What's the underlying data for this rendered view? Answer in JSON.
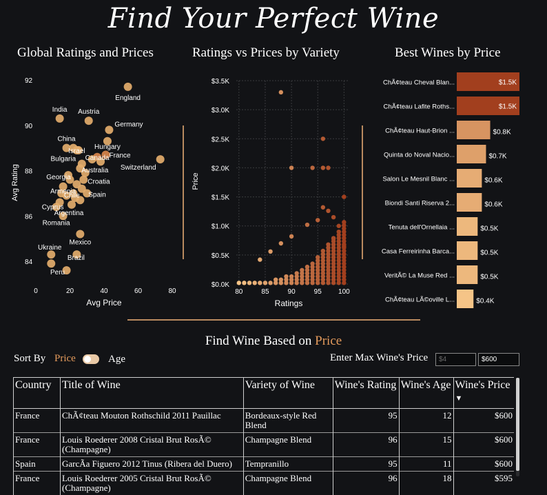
{
  "page_title": "Find Your Perfect Wine",
  "panels": {
    "global": "Global Ratings and Prices",
    "variety": "Ratings vs Prices by Variety",
    "best": "Best Wines by Price"
  },
  "colors": {
    "background": "#121316",
    "accent": "#e39a5c",
    "divider": "#b98a5f",
    "bar_dark": "#a23f1e",
    "bar_light": "#f5c487"
  },
  "chart_data": [
    {
      "type": "scatter",
      "title": "Global Ratings and Prices",
      "xlabel": "Avg Price",
      "ylabel": "Avg Rating",
      "xlim": [
        0,
        80
      ],
      "ylim": [
        83,
        92.5
      ],
      "xticks": [
        "0",
        "20",
        "40",
        "60",
        "80"
      ],
      "yticks": [
        "84",
        "86",
        "88",
        "90",
        "92"
      ],
      "grid": false,
      "points": [
        {
          "label": "England",
          "x": 54,
          "y": 91.7
        },
        {
          "label": "India",
          "x": 14,
          "y": 90.3
        },
        {
          "label": "Austria",
          "x": 31,
          "y": 90.2
        },
        {
          "label": "Germany",
          "x": 43,
          "y": 89.8
        },
        {
          "label": "Hungary",
          "x": 42,
          "y": 89.3
        },
        {
          "label": "China",
          "x": 18,
          "y": 89.0
        },
        {
          "label": "Israel",
          "x": 24,
          "y": 88.9
        },
        {
          "label": "Canada",
          "x": 36,
          "y": 88.6
        },
        {
          "label": "France",
          "x": 41,
          "y": 88.7
        },
        {
          "label": "Switzerland",
          "x": 73,
          "y": 88.5
        },
        {
          "label": "Bulgaria",
          "x": 27,
          "y": 88.3
        },
        {
          "label": "Australia",
          "x": 26,
          "y": 88.1
        },
        {
          "label": "Georgia",
          "x": 19,
          "y": 87.8
        },
        {
          "label": "Croatia",
          "x": 28,
          "y": 87.6
        },
        {
          "label": "Armenia",
          "x": 16,
          "y": 87.3
        },
        {
          "label": "Chile",
          "x": 22,
          "y": 87.0
        },
        {
          "label": "Spain",
          "x": 30,
          "y": 87.0
        },
        {
          "label": "Cyprus",
          "x": 14,
          "y": 86.6
        },
        {
          "label": "Argentina",
          "x": 21,
          "y": 86.5
        },
        {
          "label": "Romania",
          "x": 16,
          "y": 86.0
        },
        {
          "label": "Mexico",
          "x": 26,
          "y": 85.2
        },
        {
          "label": "Ukraine",
          "x": 9,
          "y": 84.3
        },
        {
          "label": "Brazil",
          "x": 24,
          "y": 84.3
        },
        {
          "label": "Peru",
          "x": 18,
          "y": 83.6
        },
        {
          "label": "",
          "x": 22,
          "y": 89.0
        },
        {
          "label": "",
          "x": 25,
          "y": 88.9
        },
        {
          "label": "",
          "x": 20,
          "y": 87.6
        },
        {
          "label": "",
          "x": 24,
          "y": 87.4
        },
        {
          "label": "",
          "x": 27,
          "y": 87.2
        },
        {
          "label": "",
          "x": 23,
          "y": 86.8
        },
        {
          "label": "",
          "x": 26,
          "y": 86.7
        },
        {
          "label": "",
          "x": 29,
          "y": 87.9
        },
        {
          "label": "",
          "x": 33,
          "y": 88.5
        },
        {
          "label": "",
          "x": 38,
          "y": 88.4
        },
        {
          "label": "",
          "x": 15,
          "y": 87.0
        },
        {
          "label": "",
          "x": 18,
          "y": 86.9
        },
        {
          "label": "",
          "x": 12,
          "y": 86.4
        },
        {
          "label": "",
          "x": 9,
          "y": 83.9
        }
      ]
    },
    {
      "type": "scatter",
      "title": "Ratings vs Prices by Variety",
      "xlabel": "Ratings",
      "ylabel": "Price",
      "xlim": [
        79.5,
        101
      ],
      "ylim": [
        0,
        3500
      ],
      "xticks": [
        "80",
        "85",
        "90",
        "95",
        "100"
      ],
      "yticks": [
        "$0.0K",
        "$0.5K",
        "$1.0K",
        "$1.5K",
        "$2.0K",
        "$2.5K",
        "$3.0K",
        "$3.5K"
      ],
      "grid": true,
      "outliers": [
        {
          "x": 88,
          "y": 3300
        },
        {
          "x": 96,
          "y": 2500
        },
        {
          "x": 90,
          "y": 2000
        },
        {
          "x": 94,
          "y": 2000
        },
        {
          "x": 96,
          "y": 2000
        },
        {
          "x": 97,
          "y": 2000
        },
        {
          "x": 100,
          "y": 1500
        },
        {
          "x": 98,
          "y": 1150
        },
        {
          "x": 93,
          "y": 1020
        },
        {
          "x": 96,
          "y": 1320
        },
        {
          "x": 97,
          "y": 1260
        },
        {
          "x": 99,
          "y": 1000
        },
        {
          "x": 95,
          "y": 1100
        },
        {
          "x": 90,
          "y": 820
        },
        {
          "x": 88,
          "y": 700
        },
        {
          "x": 86,
          "y": 560
        },
        {
          "x": 84,
          "y": 420
        },
        {
          "x": 98,
          "y": 780
        },
        {
          "x": 100,
          "y": 650
        }
      ]
    },
    {
      "type": "bar",
      "title": "Best Wines by Price",
      "orientation": "horizontal",
      "categories": [
        "ChÃ¢teau Cheval Blan...",
        "ChÃ¢teau Lafite Roths...",
        "ChÃ¢teau Haut-Brion ...",
        "Quinta do Noval Nacio...",
        "Salon Le Mesnil Blanc ...",
        "Biondi Santi Riserva 2...",
        "Tenuta dell'Ornellaia ...",
        "Casa Ferreirinha Barca...",
        "VeritÃ© La Muse Red ...",
        "ChÃ¢teau LÃ©oville L..."
      ],
      "values": [
        1500,
        1500,
        800,
        700,
        600,
        600,
        500,
        500,
        500,
        400
      ],
      "data_labels": [
        "$1.5K",
        "$1.5K",
        "$0.8K",
        "$0.7K",
        "$0.6K",
        "$0.6K",
        "$0.5K",
        "$0.5K",
        "$0.5K",
        "$0.4K"
      ],
      "xlim": [
        0,
        1500
      ]
    }
  ],
  "finder": {
    "title_prefix": "Find Wine Based on ",
    "title_accent": "Price",
    "sort_by_label": "Sort By",
    "sort_option_1": "Price",
    "sort_option_2": "Age",
    "max_price_label": "Enter Max Wine's Price",
    "min_placeholder": "$4",
    "max_value": "$600"
  },
  "table": {
    "headers": [
      "Country",
      "Title of Wine",
      "Variety of Wine",
      "Wine's Rating",
      "Wine's Age",
      "Wine's Price"
    ],
    "sort_indicator": "▼",
    "rows": [
      {
        "country": "France",
        "title": "ChÃ¢teau Mouton Rothschild 2011 Pauillac",
        "variety": "Bordeaux-style Red Blend",
        "rating": "95",
        "age": "12",
        "price": "$600"
      },
      {
        "country": "France",
        "title": "Louis Roederer 2008 Cristal Brut RosÃ© (Champagne)",
        "variety": "Champagne Blend",
        "rating": "96",
        "age": "15",
        "price": "$600"
      },
      {
        "country": "Spain",
        "title": "GarcÃ­a Figuero 2012 Tinus (Ribera del Duero)",
        "variety": "Tempranillo",
        "rating": "95",
        "age": "11",
        "price": "$600"
      },
      {
        "country": "France",
        "title": "Louis Roederer 2005 Cristal Brut RosÃ© (Champagne)",
        "variety": "Champagne Blend",
        "rating": "96",
        "age": "18",
        "price": "$595"
      }
    ]
  }
}
